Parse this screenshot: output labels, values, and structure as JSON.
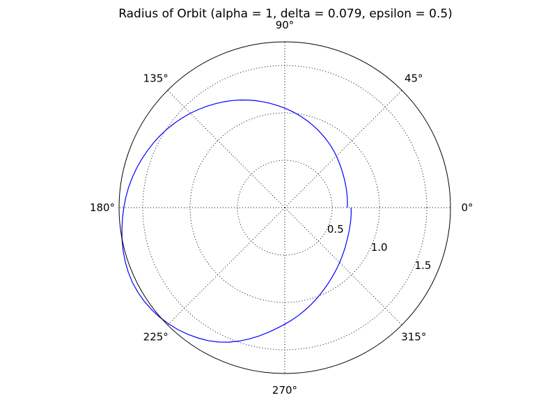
{
  "chart_data": {
    "type": "polar-line",
    "title": "Radius of Orbit (alpha = 1, delta = 0.079, epsilon = 0.5)",
    "theta_unit": "degrees",
    "theta_range": [
      0,
      360
    ],
    "r_range": [
      0,
      1.75
    ],
    "angular_ticks": [
      {
        "value": 0,
        "label": "0°"
      },
      {
        "value": 45,
        "label": "45°"
      },
      {
        "value": 90,
        "label": "90°"
      },
      {
        "value": 135,
        "label": "135°"
      },
      {
        "value": 180,
        "label": "180°"
      },
      {
        "value": 225,
        "label": "225°"
      },
      {
        "value": 270,
        "label": "270°"
      },
      {
        "value": 315,
        "label": "315°"
      }
    ],
    "radial_ticks": [
      {
        "value": 0.5,
        "label": "0.5"
      },
      {
        "value": 1.0,
        "label": "1.0"
      },
      {
        "value": 1.5,
        "label": "1.5"
      }
    ],
    "grid": true,
    "legend": "none",
    "series": [
      {
        "color": "#0000ff",
        "points": [
          {
            "theta": 0,
            "r": 0.66
          },
          {
            "theta": 30,
            "r": 0.71
          },
          {
            "theta": 60,
            "r": 0.85
          },
          {
            "theta": 90,
            "r": 1.05
          },
          {
            "theta": 120,
            "r": 1.29
          },
          {
            "theta": 150,
            "r": 1.52
          },
          {
            "theta": 180,
            "r": 1.7
          },
          {
            "theta": 210,
            "r": 1.79
          },
          {
            "theta": 240,
            "r": 1.62
          },
          {
            "theta": 270,
            "r": 1.23
          },
          {
            "theta": 300,
            "r": 0.92
          },
          {
            "theta": 330,
            "r": 0.75
          },
          {
            "theta": 360,
            "r": 0.7
          }
        ]
      }
    ]
  }
}
